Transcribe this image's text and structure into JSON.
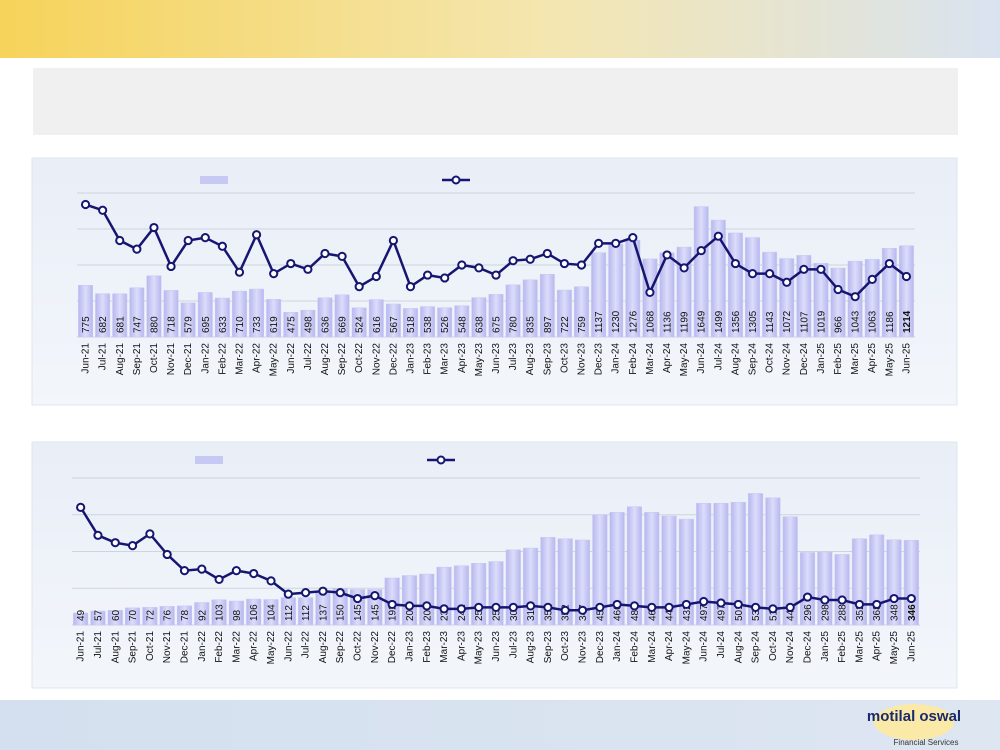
{
  "brand": {
    "name": "motilal oswal",
    "tagline": "Financial Services"
  },
  "chart_data": [
    {
      "type": "bar_line",
      "categories": [
        "Jun-21",
        "Jul-21",
        "Aug-21",
        "Sep-21",
        "Oct-21",
        "Nov-21",
        "Dec-21",
        "Jan-22",
        "Feb-22",
        "Mar-22",
        "Apr-22",
        "May-22",
        "Jun-22",
        "Jul-22",
        "Aug-22",
        "Sep-22",
        "Oct-22",
        "Nov-22",
        "Dec-22",
        "Jan-23",
        "Feb-23",
        "Mar-23",
        "Apr-23",
        "May-23",
        "Jun-23",
        "Jul-23",
        "Aug-23",
        "Sep-23",
        "Oct-23",
        "Nov-23",
        "Dec-23",
        "Jan-24",
        "Feb-24",
        "Mar-24",
        "Apr-24",
        "May-24",
        "Jun-24",
        "Jul-24",
        "Aug-24",
        "Sep-24",
        "Oct-24",
        "Nov-24",
        "Dec-24",
        "Jan-25",
        "Feb-25",
        "Mar-25",
        "Apr-25",
        "May-25",
        "Jun-25"
      ],
      "series": [
        {
          "type": "bar",
          "color": "#c8c8f4",
          "values": [
            775,
            682,
            681,
            747,
            880,
            718,
            579,
            695,
            633,
            710,
            733,
            619,
            475,
            498,
            636,
            669,
            524,
            616,
            567,
            518,
            538,
            526,
            548,
            638,
            675,
            780,
            835,
            897,
            722,
            759,
            1137,
            1230,
            1276,
            1068,
            1136,
            1199,
            1649,
            1499,
            1356,
            1305,
            1143,
            1072,
            1107,
            1019,
            966,
            1043,
            1063,
            1186,
            1214
          ]
        },
        {
          "type": "line",
          "axis": "y2",
          "color": "#161670",
          "values": [
            92,
            88,
            67,
            61,
            76,
            49,
            67,
            69,
            63,
            45,
            71,
            44,
            51,
            47,
            58,
            56,
            35,
            42,
            67,
            35,
            43,
            41,
            50,
            48,
            43,
            53,
            54,
            58,
            51,
            50,
            65,
            65,
            69,
            31,
            57,
            48,
            60,
            70,
            51,
            44,
            44,
            38,
            47,
            47,
            33,
            28,
            40,
            51,
            42
          ]
        }
      ],
      "ylim": [
        200,
        1800
      ],
      "y2lim": [
        0,
        100
      ],
      "grid": true
    },
    {
      "type": "bar_line",
      "categories": [
        "Jun-21",
        "Jul-21",
        "Aug-21",
        "Sep-21",
        "Oct-21",
        "Nov-21",
        "Dec-21",
        "Jan-22",
        "Feb-22",
        "Mar-22",
        "Apr-22",
        "May-22",
        "Jun-22",
        "Jul-22",
        "Aug-22",
        "Sep-22",
        "Oct-22",
        "Nov-22",
        "Dec-22",
        "Jan-23",
        "Feb-23",
        "Mar-23",
        "Apr-23",
        "May-23",
        "Jun-23",
        "Jul-23",
        "Aug-23",
        "Sep-23",
        "Oct-23",
        "Nov-23",
        "Dec-23",
        "Jan-24",
        "Feb-24",
        "Mar-24",
        "Apr-24",
        "May-24",
        "Jun-24",
        "Jul-24",
        "Aug-24",
        "Sep-24",
        "Oct-24",
        "Nov-24",
        "Dec-24",
        "Jan-25",
        "Feb-25",
        "Mar-25",
        "Apr-25",
        "May-25",
        "Jun-25"
      ],
      "series": [
        {
          "type": "bar",
          "color": "#c8c8f4",
          "values": [
            49,
            57,
            60,
            70,
            72,
            76,
            78,
            92,
            103,
            98,
            106,
            104,
            112,
            112,
            137,
            150,
            145,
            145,
            192,
            202,
            208,
            236,
            242,
            252,
            259,
            307,
            314,
            358,
            352,
            347,
            450,
            460,
            483,
            460,
            445,
            432,
            497,
            497,
            501,
            537,
            519,
            442,
            296,
            298,
            288,
            352,
            368,
            348,
            346
          ]
        },
        {
          "type": "line",
          "axis": "y2",
          "color": "#161670",
          "values": [
            80,
            61,
            56,
            54,
            62,
            48,
            37,
            38,
            31,
            37,
            35,
            30,
            21,
            22,
            23,
            22,
            18,
            20,
            14,
            13,
            13,
            11,
            11,
            12,
            12,
            12,
            13,
            12,
            10,
            10,
            12,
            14,
            13,
            12,
            12,
            14,
            16,
            15,
            14,
            12,
            11,
            12,
            19,
            17,
            17,
            14,
            14,
            18,
            18
          ]
        }
      ],
      "ylim": [
        0,
        600
      ],
      "y2lim": [
        0,
        100
      ],
      "grid": true
    }
  ]
}
